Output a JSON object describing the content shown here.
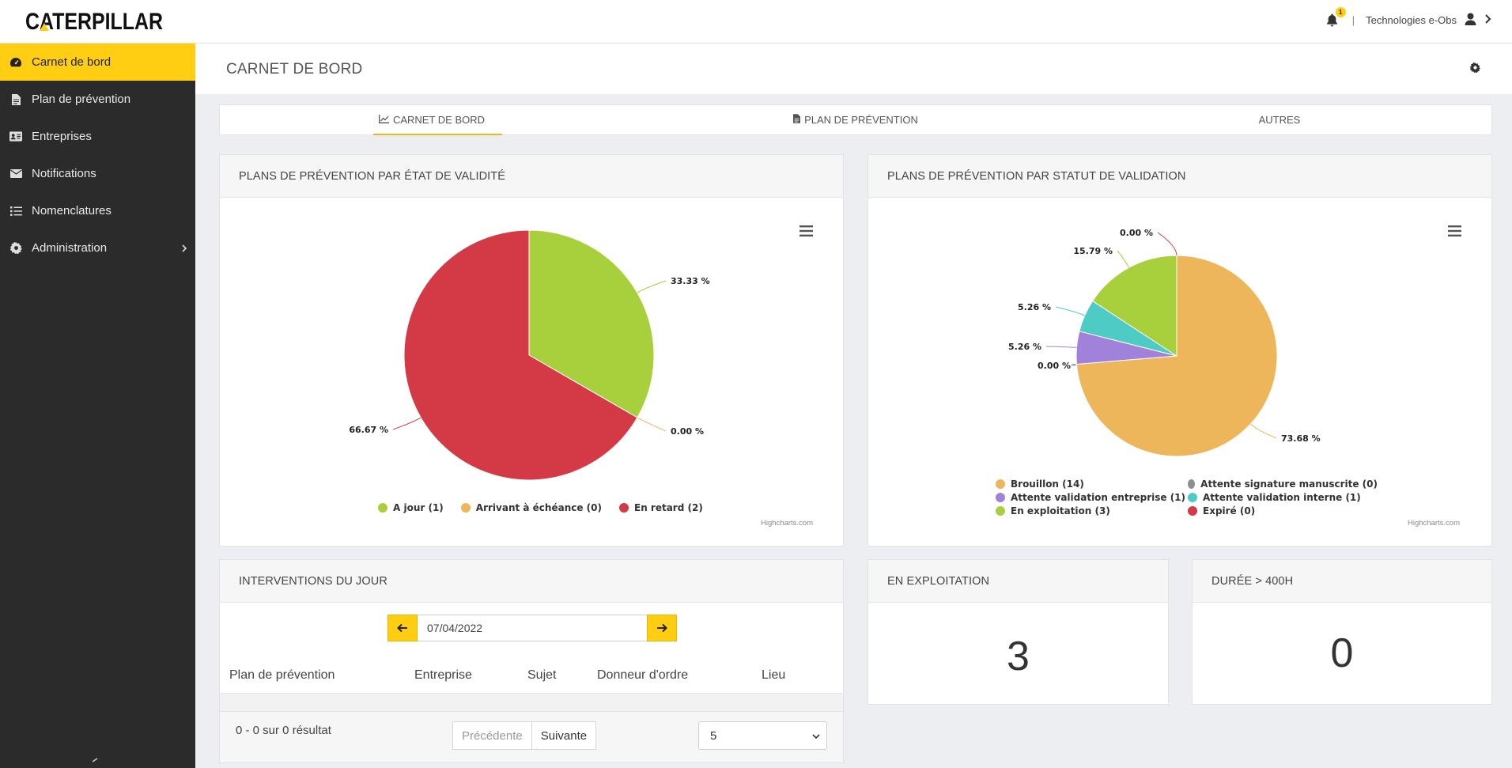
{
  "topbar": {
    "brand": "CATERPILLAR",
    "notification_count": "1",
    "separator": "|",
    "user_name": "Technologies e-Obs"
  },
  "sidebar": {
    "items": [
      {
        "label": "Carnet de bord",
        "icon": "dashboard-icon",
        "active": true
      },
      {
        "label": "Plan de prévention",
        "icon": "file-icon"
      },
      {
        "label": "Entreprises",
        "icon": "id-card-icon"
      },
      {
        "label": "Notifications",
        "icon": "envelope-icon"
      },
      {
        "label": "Nomenclatures",
        "icon": "list-icon"
      },
      {
        "label": "Administration",
        "icon": "gear-icon",
        "has_children": true
      }
    ]
  },
  "header": {
    "title": "CARNET DE BORD"
  },
  "tabs": [
    {
      "label": "CARNET DE BORD",
      "icon": "line-chart-icon",
      "active": true
    },
    {
      "label": "PLAN DE PRÉVENTION",
      "icon": "file-icon"
    },
    {
      "label": "AUTRES"
    }
  ],
  "validity_card": {
    "title": "PLANS DE PRÉVENTION PAR ÉTAT DE VALIDITÉ",
    "credits": "Highcharts.com"
  },
  "status_card": {
    "title": "PLANS DE PRÉVENTION PAR STATUT DE VALIDATION",
    "credits": "Highcharts.com"
  },
  "chart_data": [
    {
      "type": "pie",
      "title": "PLANS DE PRÉVENTION PAR ÉTAT DE VALIDITÉ",
      "slices": [
        {
          "name": "A jour",
          "count": 1,
          "percent": 33.33,
          "label": "33.33 %",
          "legend": "A jour (1)",
          "color": "#a8cf3c"
        },
        {
          "name": "Arrivant à échéance",
          "count": 0,
          "percent": 0.0,
          "label": "0.00 %",
          "legend": "Arrivant à échéance (0)",
          "color": "#edb65a"
        },
        {
          "name": "En retard",
          "count": 2,
          "percent": 66.67,
          "label": "66.67 %",
          "legend": "En retard (2)",
          "color": "#d33a46"
        }
      ],
      "legend_position": "bottom"
    },
    {
      "type": "pie",
      "title": "PLANS DE PRÉVENTION PAR STATUT DE VALIDATION",
      "slices": [
        {
          "name": "Brouillon",
          "count": 14,
          "percent": 73.68,
          "label": "73.68 %",
          "legend": "Brouillon (14)",
          "color": "#edb65a"
        },
        {
          "name": "Attente signature manuscrite",
          "count": 0,
          "percent": 0.0,
          "label": "0.00 %",
          "legend": "Attente signature manuscrite (0)",
          "color": "#8e8e8e"
        },
        {
          "name": "Attente validation entreprise",
          "count": 1,
          "percent": 5.26,
          "label": "5.26 %",
          "legend": "Attente validation entreprise (1)",
          "color": "#a182da"
        },
        {
          "name": "Attente validation interne",
          "count": 1,
          "percent": 5.26,
          "label": "5.26 %",
          "legend": "Attente validation interne (1)",
          "color": "#4fcbc5"
        },
        {
          "name": "En exploitation",
          "count": 3,
          "percent": 15.79,
          "label": "15.79 %",
          "legend": "En exploitation (3)",
          "color": "#a8cf3c"
        },
        {
          "name": "Expiré",
          "count": 0,
          "percent": 0.0,
          "label": "0.00 %",
          "legend": "Expiré (0)",
          "color": "#d33a46"
        }
      ],
      "legend_position": "bottom"
    }
  ],
  "interventions": {
    "title": "INTERVENTIONS DU JOUR",
    "date": "07/04/2022",
    "columns": [
      "Plan de prévention",
      "Entreprise",
      "Sujet",
      "Donneur d'ordre",
      "Lieu"
    ],
    "results_text": "0 - 0 sur 0 résultat",
    "prev_label": "Précédente",
    "next_label": "Suivante",
    "page_size": "5"
  },
  "exploitation_card": {
    "title": "EN EXPLOITATION",
    "value": "3"
  },
  "duration_card": {
    "title": "DURÉE > 400H",
    "value": "0"
  },
  "colors": {
    "accent": "#ffcd11",
    "sidebar": "#2b2b2b"
  }
}
